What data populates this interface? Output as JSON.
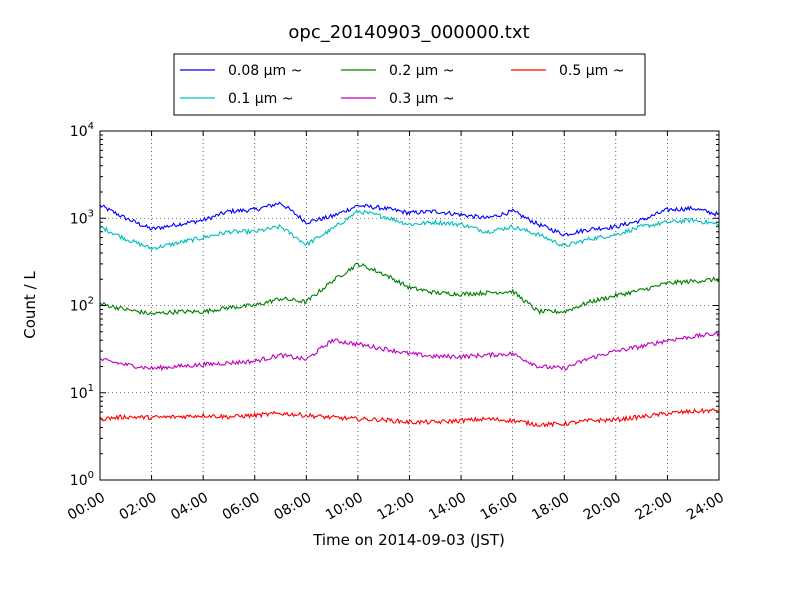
{
  "chart_data": {
    "type": "line",
    "title": "opc_20140903_000000.txt",
    "xlabel": "Time on 2014-09-03 (JST)",
    "ylabel": "Count / L",
    "yscale": "log",
    "ylim": [
      1,
      10000
    ],
    "xlim": [
      "00:00",
      "24:00"
    ],
    "grid": true,
    "legend_position": "top-center, outside plot",
    "x_tick_labels": [
      "00:00",
      "02:00",
      "04:00",
      "06:00",
      "08:00",
      "10:00",
      "12:00",
      "14:00",
      "16:00",
      "18:00",
      "20:00",
      "22:00",
      "24:00"
    ],
    "x": [
      "00:00",
      "01:00",
      "02:00",
      "03:00",
      "04:00",
      "05:00",
      "06:00",
      "07:00",
      "08:00",
      "09:00",
      "10:00",
      "11:00",
      "12:00",
      "13:00",
      "14:00",
      "15:00",
      "16:00",
      "17:00",
      "18:00",
      "19:00",
      "20:00",
      "21:00",
      "22:00",
      "23:00",
      "24:00"
    ],
    "series": [
      {
        "name": "0.08 μm ~",
        "color": "#0000ff",
        "values": [
          1400,
          1000,
          750,
          850,
          950,
          1200,
          1250,
          1500,
          900,
          1050,
          1400,
          1300,
          1150,
          1200,
          1100,
          1000,
          1200,
          850,
          650,
          750,
          800,
          950,
          1250,
          1300,
          1100
        ]
      },
      {
        "name": "0.1 μm ~",
        "color": "#00bfbf",
        "values": [
          800,
          580,
          450,
          520,
          600,
          700,
          700,
          800,
          500,
          750,
          1200,
          1050,
          850,
          900,
          850,
          700,
          800,
          650,
          480,
          580,
          650,
          800,
          900,
          950,
          850
        ]
      },
      {
        "name": "0.2 μm ~",
        "color": "#008000",
        "values": [
          105,
          90,
          80,
          85,
          85,
          95,
          100,
          120,
          110,
          190,
          300,
          230,
          160,
          140,
          135,
          140,
          145,
          85,
          85,
          110,
          130,
          150,
          180,
          190,
          200
        ]
      },
      {
        "name": "0.3 μm ~",
        "color": "#bf00bf",
        "values": [
          24,
          21,
          19,
          20,
          21,
          22,
          23,
          27,
          24,
          40,
          36,
          32,
          28,
          26,
          26,
          27,
          28,
          20,
          19,
          25,
          30,
          34,
          40,
          44,
          48
        ]
      },
      {
        "name": "0.5 μm ~",
        "color": "#ff0000",
        "values": [
          5.0,
          5.3,
          5.2,
          5.3,
          5.5,
          5.3,
          5.5,
          5.8,
          5.5,
          5.2,
          5.0,
          4.9,
          4.6,
          4.6,
          4.8,
          5.0,
          4.8,
          4.3,
          4.4,
          4.8,
          4.9,
          5.3,
          5.8,
          6.1,
          6.3
        ]
      }
    ]
  }
}
